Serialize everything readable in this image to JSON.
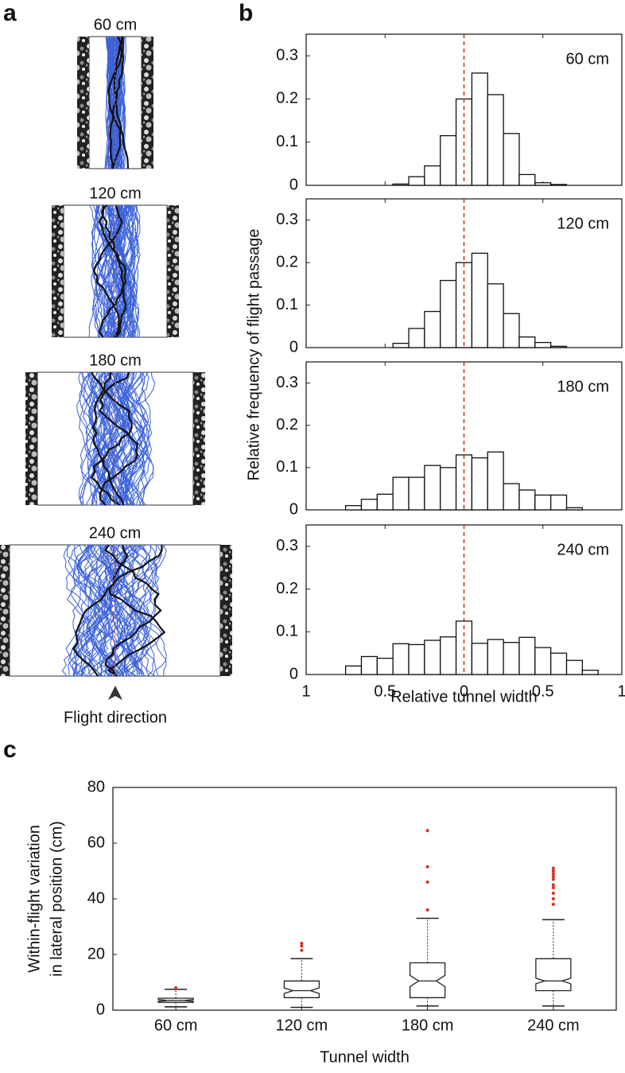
{
  "panel_a": {
    "letter": "a",
    "tunnels": [
      {
        "label": "60 cm"
      },
      {
        "label": "120 cm"
      },
      {
        "label": "180 cm"
      },
      {
        "label": "240 cm"
      }
    ],
    "caption": "Flight direction"
  },
  "chart_data": [
    {
      "type": "histogram",
      "panel_label": "b",
      "annotation": "60 cm",
      "ylabel": "Relative frequency of flight passage",
      "bins": [
        -0.75,
        -0.65,
        -0.55,
        -0.45,
        -0.35,
        -0.25,
        -0.15,
        -0.05,
        0.05,
        0.15,
        0.25,
        0.35,
        0.45,
        0.55,
        0.65,
        0.75,
        0.85
      ],
      "values": [
        0,
        0,
        0,
        0.003,
        0.02,
        0.045,
        0.115,
        0.2,
        0.26,
        0.21,
        0.12,
        0.025,
        0.006,
        0.002,
        0,
        0
      ],
      "xlim": [
        -1,
        1
      ],
      "ylim": [
        0,
        0.35
      ],
      "yticks": [
        0,
        0.1,
        0.2,
        0.3
      ],
      "reference_line": {
        "x": 0,
        "color": "#c0392b"
      },
      "color": "#ffffff"
    },
    {
      "type": "histogram",
      "annotation": "120 cm",
      "bins": [
        -0.75,
        -0.65,
        -0.55,
        -0.45,
        -0.35,
        -0.25,
        -0.15,
        -0.05,
        0.05,
        0.15,
        0.25,
        0.35,
        0.45,
        0.55,
        0.65,
        0.75,
        0.85
      ],
      "values": [
        0,
        0,
        0,
        0.01,
        0.045,
        0.085,
        0.158,
        0.2,
        0.222,
        0.15,
        0.08,
        0.025,
        0.012,
        0.003,
        0,
        0
      ],
      "xlim": [
        -1,
        1
      ],
      "ylim": [
        0,
        0.35
      ],
      "yticks": [
        0,
        0.1,
        0.2,
        0.3
      ],
      "reference_line": {
        "x": 0,
        "color": "#c0392b"
      },
      "color": "#ffffff"
    },
    {
      "type": "histogram",
      "annotation": "180 cm",
      "bins": [
        -0.75,
        -0.65,
        -0.55,
        -0.45,
        -0.35,
        -0.25,
        -0.15,
        -0.05,
        0.05,
        0.15,
        0.25,
        0.35,
        0.45,
        0.55,
        0.65,
        0.75,
        0.85
      ],
      "values": [
        0.01,
        0.025,
        0.037,
        0.077,
        0.077,
        0.105,
        0.1,
        0.13,
        0.123,
        0.137,
        0.062,
        0.047,
        0.035,
        0.035,
        0.005,
        0
      ],
      "xlim": [
        -1,
        1
      ],
      "ylim": [
        0,
        0.35
      ],
      "yticks": [
        0,
        0.1,
        0.2,
        0.3
      ],
      "reference_line": {
        "x": 0,
        "color": "#c0392b"
      },
      "color": "#ffffff"
    },
    {
      "type": "histogram",
      "annotation": "240 cm",
      "xlabel": "Relative tunnel width",
      "bins": [
        -0.75,
        -0.65,
        -0.55,
        -0.45,
        -0.35,
        -0.25,
        -0.15,
        -0.05,
        0.05,
        0.15,
        0.25,
        0.35,
        0.45,
        0.55,
        0.65,
        0.75,
        0.85
      ],
      "values": [
        0.02,
        0.042,
        0.038,
        0.072,
        0.07,
        0.08,
        0.088,
        0.125,
        0.073,
        0.082,
        0.075,
        0.087,
        0.063,
        0.05,
        0.033,
        0.01
      ],
      "xlim": [
        -1,
        1
      ],
      "ylim": [
        0,
        0.35
      ],
      "yticks": [
        0,
        0.1,
        0.2,
        0.3
      ],
      "xticks": [
        {
          "value": -1,
          "label": "1"
        },
        {
          "value": -0.5,
          "label": "0.5"
        },
        0,
        {
          "value": 0.5,
          "label": "0.5"
        },
        1
      ],
      "reference_line": {
        "x": 0,
        "color": "#c0392b"
      },
      "color": "#ffffff"
    },
    {
      "type": "box",
      "panel_label": "c",
      "ylabel": [
        "Within-flight variation",
        "in lateral position (cm)"
      ],
      "xlabel": "Tunnel width",
      "categories": [
        "60 cm",
        "120 cm",
        "180 cm",
        "240 cm"
      ],
      "boxes": [
        {
          "low": 1.2,
          "q1": 2.8,
          "notch_low": 3.2,
          "median": 3.5,
          "notch_high": 3.8,
          "q3": 4.3,
          "high": 7.5,
          "outliers": [
            8
          ]
        },
        {
          "low": 1.0,
          "q1": 4.5,
          "notch_low": 6,
          "median": 7,
          "notch_high": 8,
          "q3": 10.5,
          "high": 18.5,
          "outliers": [
            21.5,
            23,
            24
          ]
        },
        {
          "low": 1.5,
          "q1": 4.5,
          "notch_low": 8.5,
          "median": 10.5,
          "notch_high": 12.5,
          "q3": 17,
          "high": 33,
          "outliers": [
            36,
            46,
            51.5,
            64.5
          ]
        },
        {
          "low": 1.5,
          "q1": 7,
          "notch_low": 9.5,
          "median": 10.5,
          "notch_high": 11.5,
          "q3": 18.5,
          "high": 32.5,
          "outliers": [
            38,
            40,
            42,
            44,
            45,
            47,
            48,
            49,
            50,
            51
          ]
        }
      ],
      "ylim": [
        0,
        80
      ],
      "yticks": [
        0,
        20,
        40,
        60,
        80
      ],
      "outlier_color": "#d7301f"
    }
  ]
}
